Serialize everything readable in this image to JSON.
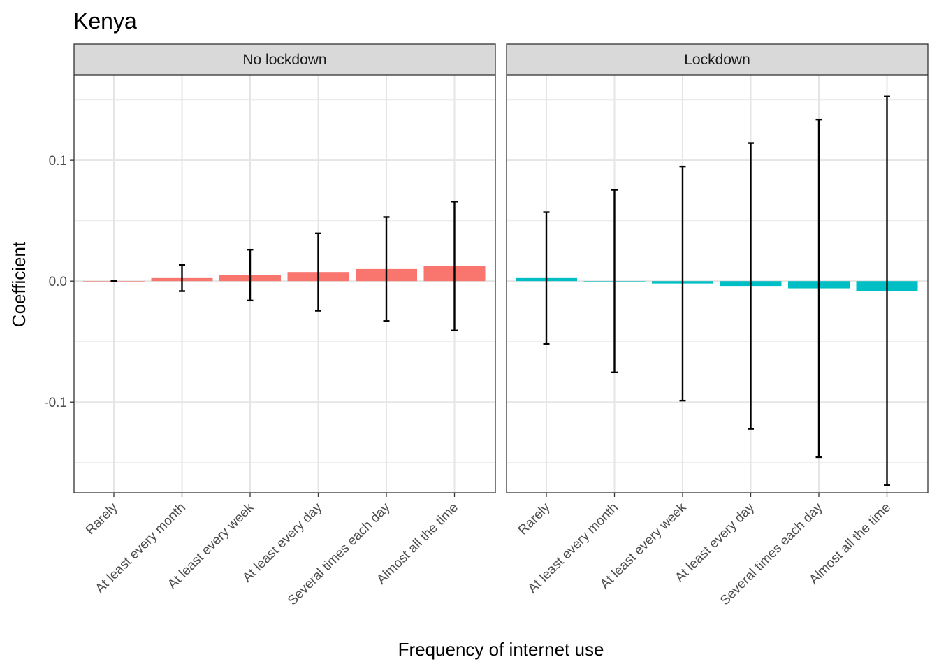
{
  "chart_data": {
    "type": "bar",
    "title": "Kenya",
    "xlabel": "Frequency of internet use",
    "ylabel": "Coefficient",
    "categories": [
      "Rarely",
      "At least every month",
      "At least every week",
      "At least every day",
      "Several times each day",
      "Almost all the time"
    ],
    "ylim": [
      -0.175,
      0.17
    ],
    "yticks": [
      -0.1,
      0.0,
      0.1
    ],
    "ytick_labels": [
      "-0.1",
      "0.0",
      "0.1"
    ],
    "grid": true,
    "legend": "none",
    "panels": [
      {
        "name": "No lockdown",
        "color": "#F8766D",
        "values": [
          0.0,
          0.0025,
          0.005,
          0.0075,
          0.01,
          0.0125
        ],
        "ci_low": [
          0.0,
          -0.0083,
          -0.016,
          -0.0245,
          -0.033,
          -0.0408
        ],
        "ci_high": [
          0.0,
          0.0133,
          0.026,
          0.0395,
          0.053,
          0.0658
        ]
      },
      {
        "name": "Lockdown",
        "color": "#00BFC4",
        "values": [
          0.0025,
          0.0,
          -0.002,
          -0.004,
          -0.006,
          -0.008
        ],
        "ci_low": [
          -0.052,
          -0.0755,
          -0.0988,
          -0.1222,
          -0.1455,
          -0.1688
        ],
        "ci_high": [
          0.057,
          0.0755,
          0.0948,
          0.1142,
          0.1335,
          0.1528
        ]
      }
    ]
  }
}
